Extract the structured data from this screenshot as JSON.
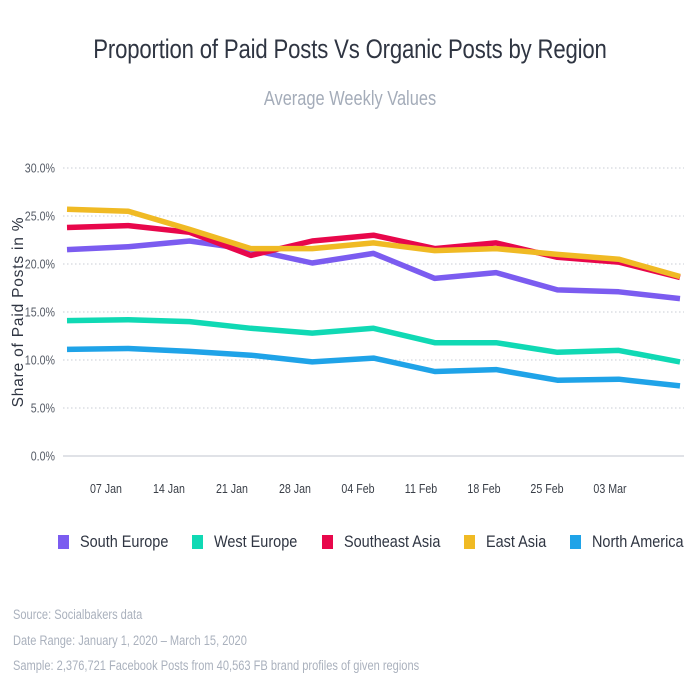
{
  "chart_data": {
    "type": "line",
    "title": "Proportion of Paid Posts Vs Organic Posts by Region",
    "subtitle": "Average Weekly Values",
    "xlabel": "",
    "ylabel": "Share of Paid Posts in %",
    "ylim": [
      0,
      30
    ],
    "yticks": [
      "0.0%",
      "5.0%",
      "10.0%",
      "15.0%",
      "20.0%",
      "25.0%",
      "30.0%"
    ],
    "ytick_values": [
      0,
      5,
      10,
      15,
      20,
      25,
      30
    ],
    "xtick_labels": [
      "07 Jan",
      "14 Jan",
      "21 Jan",
      "28 Jan",
      "04 Feb",
      "11 Feb",
      "18 Feb",
      "25 Feb",
      "03 Mar"
    ],
    "grid": "horizontal-dotted",
    "legend_position": "bottom",
    "point_count": 11,
    "series": [
      {
        "name": "South Europe",
        "color": "#7b5cf0",
        "values": [
          21.5,
          21.8,
          22.4,
          21.5,
          20.1,
          21.1,
          18.5,
          19.1,
          17.3,
          17.1,
          16.4
        ]
      },
      {
        "name": "West Europe",
        "color": "#10d9b4",
        "values": [
          14.1,
          14.2,
          14.0,
          13.3,
          12.8,
          13.3,
          11.8,
          11.8,
          10.8,
          11.0,
          9.8
        ]
      },
      {
        "name": "Southeast Asia",
        "color": "#e8074b",
        "values": [
          23.8,
          24.0,
          23.3,
          20.9,
          22.4,
          23.0,
          21.6,
          22.2,
          20.7,
          20.2,
          18.6
        ]
      },
      {
        "name": "East Asia",
        "color": "#f0ba24",
        "values": [
          25.7,
          25.5,
          23.6,
          21.6,
          21.6,
          22.2,
          21.4,
          21.6,
          21.0,
          20.5,
          18.7
        ]
      },
      {
        "name": "North America",
        "color": "#1fa3e8",
        "values": [
          11.1,
          11.2,
          10.9,
          10.5,
          9.8,
          10.2,
          8.8,
          9.0,
          7.9,
          8.0,
          7.3
        ]
      }
    ]
  },
  "footer": {
    "source": "Source: Socialbakers data",
    "date_range": "Date Range: January 1, 2020  – March 15, 2020",
    "sample": "Sample: 2,376,721 Facebook Posts from 40,563 FB brand profiles of given regions"
  }
}
